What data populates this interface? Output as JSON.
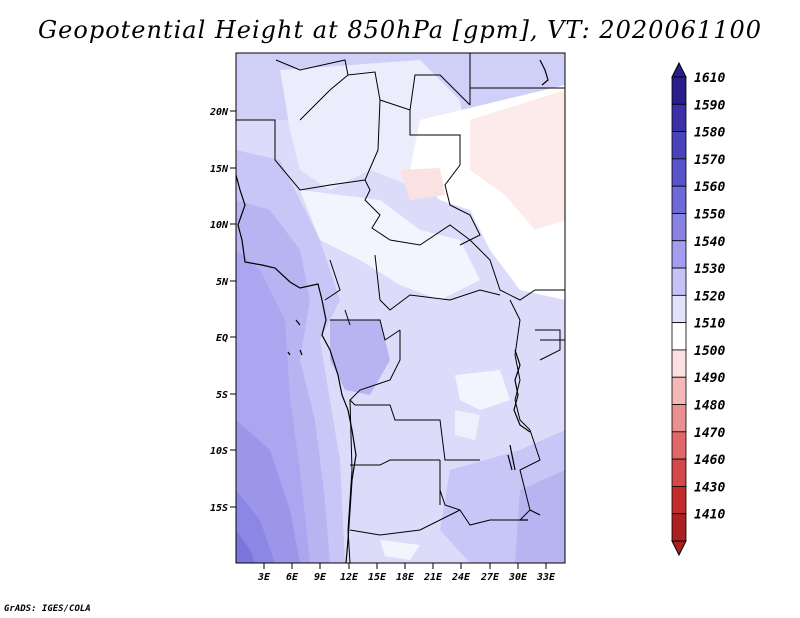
{
  "title": "Geopotential Height at 850hPa [gpm], VT: 2020061100",
  "credit": "GrADS: IGES/COLA",
  "map": {
    "lon_range": [
      0,
      35
    ],
    "lat_range": [
      -20,
      24
    ],
    "lon_ticks": [
      "3E",
      "6E",
      "9E",
      "12E",
      "15E",
      "18E",
      "21E",
      "24E",
      "27E",
      "30E",
      "33E"
    ],
    "lat_ticks": [
      "20N",
      "15N",
      "10N",
      "5N",
      "EQ",
      "5S",
      "10S",
      "15S"
    ]
  },
  "colorbar": {
    "levels": [
      "1610",
      "1590",
      "1580",
      "1570",
      "1560",
      "1550",
      "1540",
      "1530",
      "1520",
      "1510",
      "1500",
      "1490",
      "1480",
      "1470",
      "1460",
      "1430",
      "1410"
    ],
    "colors": [
      "#2a1e8a",
      "#3a30a8",
      "#4a42bc",
      "#5a54cc",
      "#6e6ad8",
      "#8882e2",
      "#a49ef0",
      "#c4c2f6",
      "#e2e2fa",
      "#ffffff",
      "#fde0e0",
      "#f4b8b8",
      "#ea9090",
      "#e06868",
      "#d44848",
      "#c42c2c",
      "#ac2020"
    ]
  }
}
